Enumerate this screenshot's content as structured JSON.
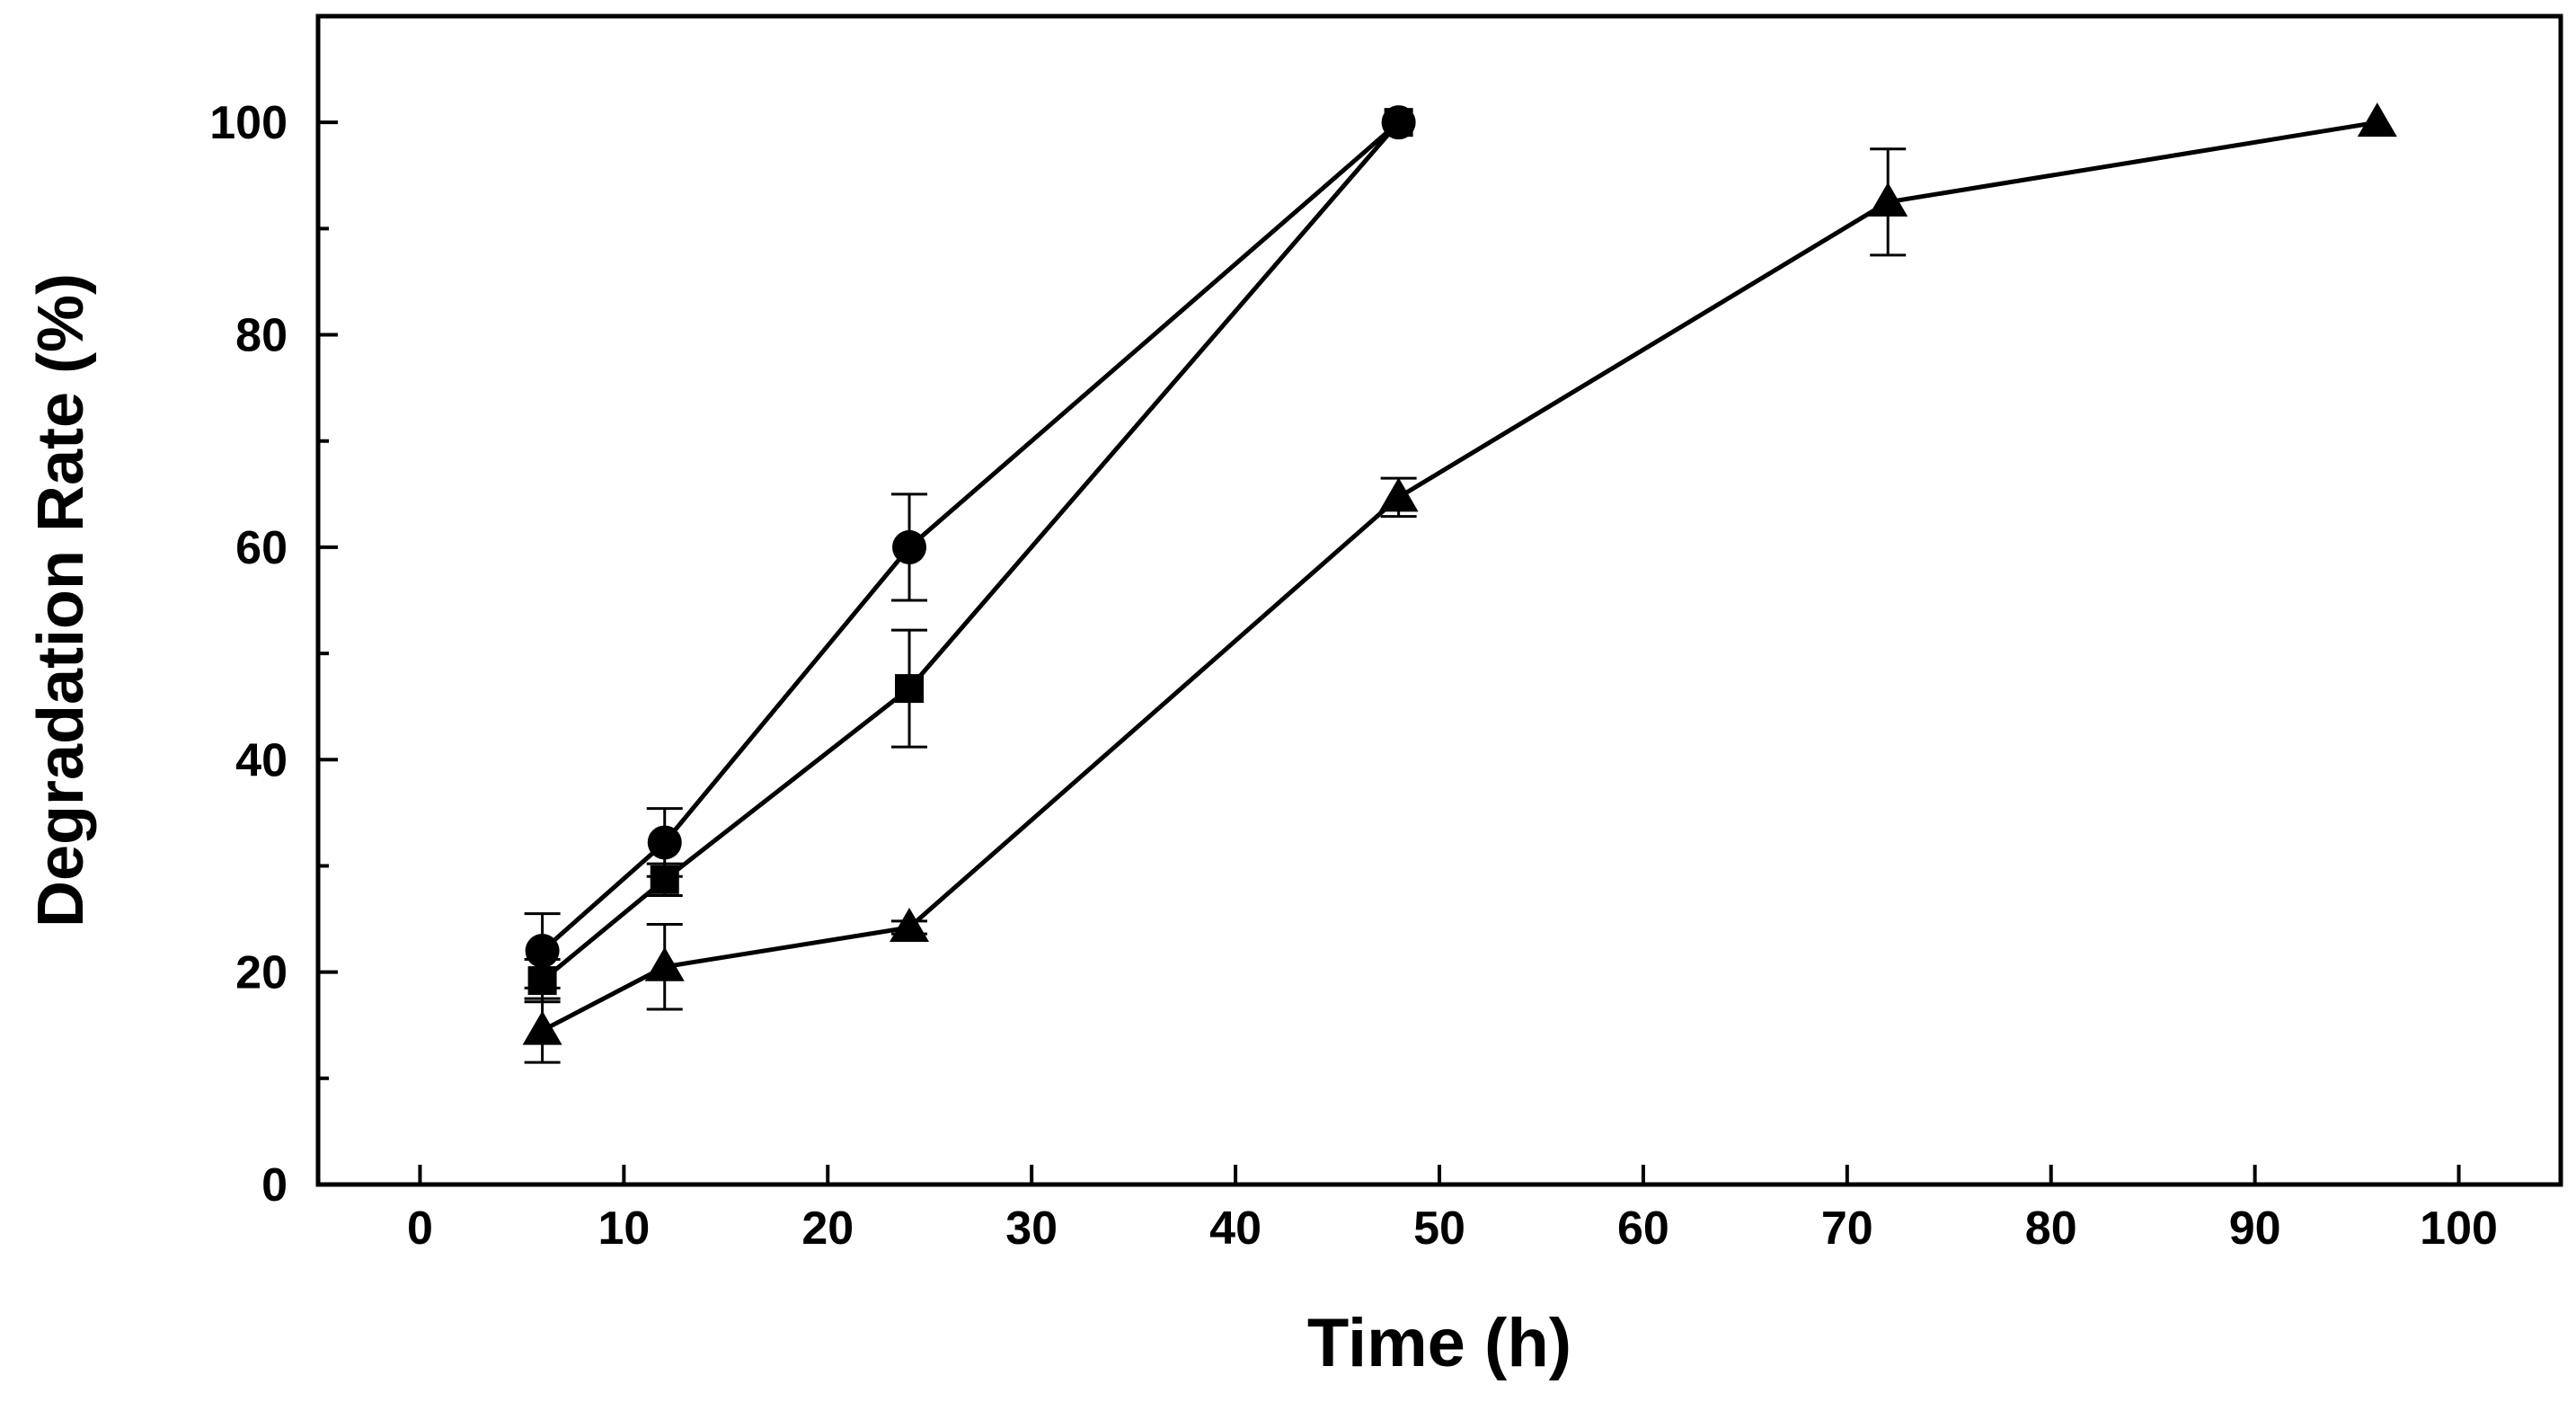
{
  "chart_data": {
    "type": "line",
    "xlabel": "Time (h)",
    "ylabel": "Degradation Rate (%)",
    "xlim": [
      -5,
      105
    ],
    "ylim": [
      0,
      110
    ],
    "xticks": [
      0,
      10,
      20,
      30,
      40,
      50,
      60,
      70,
      80,
      90,
      100
    ],
    "yticks": [
      0,
      20,
      40,
      60,
      80,
      100
    ],
    "series": [
      {
        "name": "circle",
        "marker": "circle",
        "x": [
          6,
          12,
          24,
          48
        ],
        "y": [
          22,
          32.2,
          60,
          100
        ],
        "err": [
          3.5,
          3.2,
          5,
          0
        ]
      },
      {
        "name": "square",
        "marker": "square",
        "x": [
          6,
          12,
          24,
          48
        ],
        "y": [
          19.2,
          28.7,
          46.7,
          100
        ],
        "err": [
          2,
          1.5,
          5.5,
          0
        ]
      },
      {
        "name": "triangle",
        "marker": "triangle",
        "x": [
          6,
          12,
          24,
          48,
          72,
          96
        ],
        "y": [
          14.5,
          20.5,
          24.2,
          64.7,
          92.5,
          100
        ],
        "err": [
          3,
          4,
          0.6,
          1.8,
          5,
          0
        ]
      }
    ]
  }
}
